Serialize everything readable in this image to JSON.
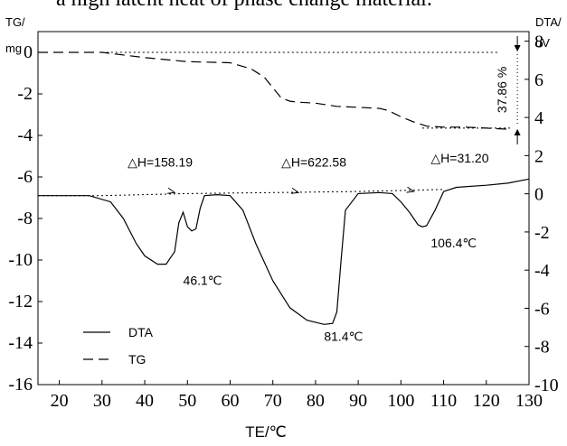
{
  "caption_text": "a high latent heat of phase change material.",
  "chart_data": {
    "type": "line",
    "xlabel": "TE/℃",
    "ylabel_left_top": "TG/",
    "ylabel_left_unit": "mg",
    "ylabel_right_top": "DTA/",
    "ylabel_right_unit": "uV",
    "xlim": [
      15,
      130
    ],
    "ylim_left": [
      -16,
      1
    ],
    "ylim_right": [
      -10,
      8.5
    ],
    "x_ticks": [
      20,
      30,
      40,
      50,
      60,
      70,
      80,
      90,
      100,
      110,
      120,
      130
    ],
    "y_left_ticks": [
      0,
      -2,
      -4,
      -6,
      -8,
      -10,
      -12,
      -14,
      -16
    ],
    "y_right_ticks": [
      8,
      6,
      4,
      2,
      0,
      -2,
      -4,
      -6,
      -8,
      -10
    ],
    "series": [
      {
        "name": "DTA",
        "axis": "left",
        "style": "solid",
        "x": [
          15,
          27,
          32,
          35,
          38,
          40,
          43,
          45,
          47,
          48,
          49,
          50,
          51,
          52,
          53,
          54,
          57,
          60,
          63,
          66,
          70,
          74,
          78,
          82,
          84,
          85,
          86,
          87,
          90,
          95,
          98,
          100,
          102,
          104,
          105,
          106,
          108,
          110,
          113,
          120,
          125,
          130
        ],
        "y": [
          -6.9,
          -6.9,
          -7.2,
          -8.0,
          -9.2,
          -9.8,
          -10.2,
          -10.2,
          -9.6,
          -8.2,
          -7.7,
          -8.4,
          -8.6,
          -8.5,
          -7.5,
          -6.9,
          -6.85,
          -6.9,
          -7.6,
          -9.2,
          -11.0,
          -12.3,
          -12.9,
          -13.1,
          -13.05,
          -12.5,
          -10.0,
          -7.6,
          -6.8,
          -6.75,
          -6.8,
          -7.2,
          -7.7,
          -8.3,
          -8.4,
          -8.35,
          -7.6,
          -6.7,
          -6.5,
          -6.4,
          -6.3,
          -6.1
        ]
      },
      {
        "name": "TG",
        "axis": "left",
        "style": "dashed",
        "x": [
          15,
          30,
          40,
          50,
          60,
          65,
          68,
          70,
          72,
          74,
          76,
          80,
          85,
          90,
          95,
          97,
          100,
          103,
          106,
          110,
          115,
          120,
          125
        ],
        "y": [
          0.0,
          0.0,
          -0.25,
          -0.45,
          -0.5,
          -0.8,
          -1.2,
          -1.7,
          -2.2,
          -2.35,
          -2.4,
          -2.45,
          -2.6,
          -2.65,
          -2.7,
          -2.8,
          -3.1,
          -3.35,
          -3.55,
          -3.6,
          -3.6,
          -3.65,
          -3.7
        ]
      },
      {
        "name": "baseline",
        "axis": "left",
        "style": "dotted",
        "x": [
          15,
          30,
          50,
          70,
          90,
          100,
          110
        ],
        "y": [
          -6.9,
          -6.9,
          -6.8,
          -6.75,
          -6.7,
          -6.65,
          -6.6
        ]
      },
      {
        "name": "tg-start-reference",
        "axis": "left",
        "style": "dotted",
        "x": [
          30,
          123
        ],
        "y": [
          0,
          0
        ]
      },
      {
        "name": "tg-end-reference",
        "axis": "left",
        "style": "dotted",
        "x": [
          105,
          126
        ],
        "y": [
          -3.65,
          -3.65
        ]
      }
    ],
    "annotations": [
      {
        "text": "△H=158.19",
        "x": 36,
        "y": -5.5
      },
      {
        "text": "△H=622.58",
        "x": 72,
        "y": -5.5
      },
      {
        "text": "△H=31.20",
        "x": 107,
        "y": -5.3
      },
      {
        "text": "46.1℃",
        "x": 49,
        "y": -11.2
      },
      {
        "text": "81.4℃",
        "x": 82,
        "y": -13.9
      },
      {
        "text": "106.4℃",
        "x": 107,
        "y": -9.4
      },
      {
        "text": "37.86 %",
        "x": 126,
        "y": -1.8
      }
    ],
    "mass_loss_bracket": {
      "x": 126,
      "y_top": 0,
      "y_bottom": -3.65
    },
    "legend": {
      "placement": "bottom-left",
      "entries": [
        {
          "name": "DTA",
          "style": "solid"
        },
        {
          "name": "TG",
          "style": "dashed"
        }
      ]
    }
  }
}
